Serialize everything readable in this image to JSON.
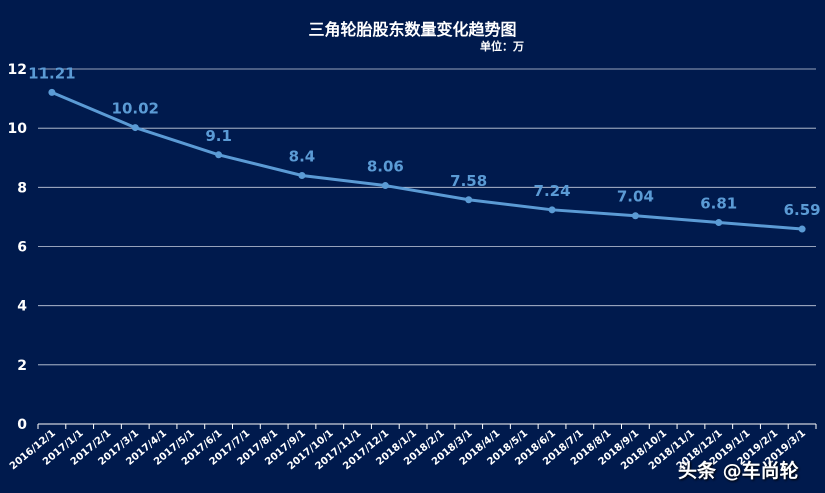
{
  "chart_data": {
    "type": "line",
    "title": "三角轮胎股东数量变化趋势图",
    "subtitle": "单位：万",
    "categories": [
      "2016/12/1",
      "2017/1/1",
      "2017/2/1",
      "2017/3/1",
      "2017/4/1",
      "2017/5/1",
      "2017/6/1",
      "2017/7/1",
      "2017/8/1",
      "2017/9/1",
      "2017/10/1",
      "2017/11/1",
      "2017/12/1",
      "2018/1/1",
      "2018/2/1",
      "2018/3/1",
      "2018/4/1",
      "2018/5/1",
      "2018/6/1",
      "2018/7/1",
      "2018/8/1",
      "2018/9/1",
      "2018/10/1",
      "2018/11/1",
      "2018/12/1",
      "2019/1/1",
      "2019/2/1",
      "2019/3/1"
    ],
    "points": [
      {
        "x": "2016/12/1",
        "y": 11.21
      },
      {
        "x": "2017/3/1",
        "y": 10.02
      },
      {
        "x": "2017/6/1",
        "y": 9.1
      },
      {
        "x": "2017/9/1",
        "y": 8.4
      },
      {
        "x": "2017/12/1",
        "y": 8.06
      },
      {
        "x": "2018/3/1",
        "y": 7.58
      },
      {
        "x": "2018/6/1",
        "y": 7.24
      },
      {
        "x": "2018/9/1",
        "y": 7.04
      },
      {
        "x": "2018/12/1",
        "y": 6.81
      },
      {
        "x": "2019/3/1",
        "y": 6.59
      }
    ],
    "yticks": [
      "0",
      "2",
      "4",
      "6",
      "8",
      "10",
      "12"
    ],
    "ylim": [
      0,
      12
    ],
    "grid": true,
    "line_color": "#5b9bd5",
    "label_color": "#5b9bd5"
  },
  "watermark": "头条 @车尚轮"
}
